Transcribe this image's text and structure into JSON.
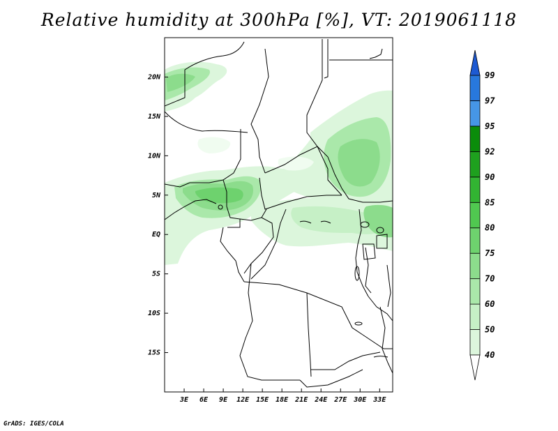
{
  "title": "Relative humidity at 300hPa [%], VT: 2019061118",
  "credit": "GrADS: IGES/COLA",
  "map": {
    "lon_range": [
      0,
      35
    ],
    "lat_range": [
      -20,
      25
    ],
    "lat_labels": [
      "20N",
      "15N",
      "10N",
      "5N",
      "EQ",
      "5S",
      "10S",
      "15S"
    ],
    "lat_values": [
      20,
      15,
      10,
      5,
      0,
      -5,
      -10,
      -15
    ],
    "lon_labels": [
      "3E",
      "6E",
      "9E",
      "12E",
      "15E",
      "18E",
      "21E",
      "24E",
      "27E",
      "30E",
      "33E"
    ],
    "lon_values": [
      3,
      6,
      9,
      12,
      15,
      18,
      21,
      24,
      27,
      30,
      33
    ]
  },
  "colorbar": {
    "levels": [
      "40",
      "50",
      "60",
      "70",
      "75",
      "80",
      "85",
      "90",
      "92",
      "95",
      "97",
      "99"
    ],
    "colors": [
      "#f0fcf0",
      "#dcf6dc",
      "#c6f0c6",
      "#aae8aa",
      "#8cdc8c",
      "#6ed26e",
      "#50c850",
      "#32b432",
      "#1ea01e",
      "#0a8c0a",
      "#4696e6",
      "#2878dc",
      "#1e5ad2"
    ]
  }
}
